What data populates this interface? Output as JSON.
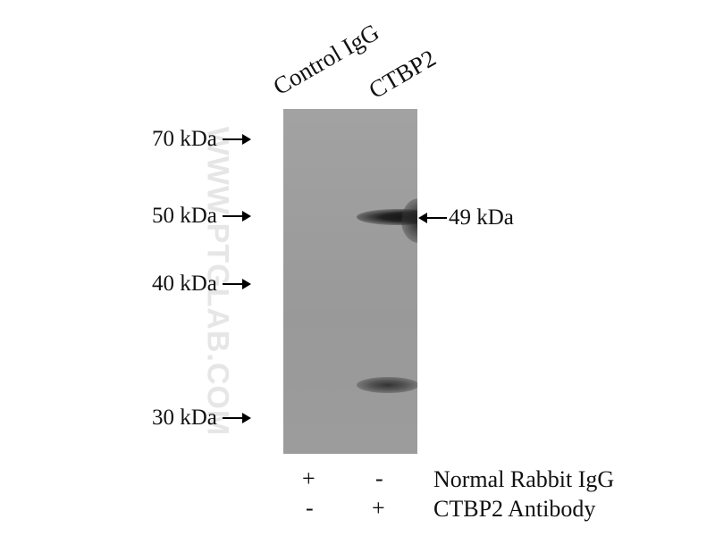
{
  "lanes": [
    "Control IgG",
    "CTBP2"
  ],
  "markers": [
    "70 kDa",
    "50 kDa",
    "40 kDa",
    "30 kDa"
  ],
  "band_label": "49 kDa",
  "watermark": "WWW.PTGLAB.COM",
  "rows": [
    {
      "label": "Normal Rabbit IgG",
      "lane1": "+",
      "lane2": "-"
    },
    {
      "label": "CTBP2 Antibody",
      "lane1": "-",
      "lane2": "+"
    }
  ]
}
